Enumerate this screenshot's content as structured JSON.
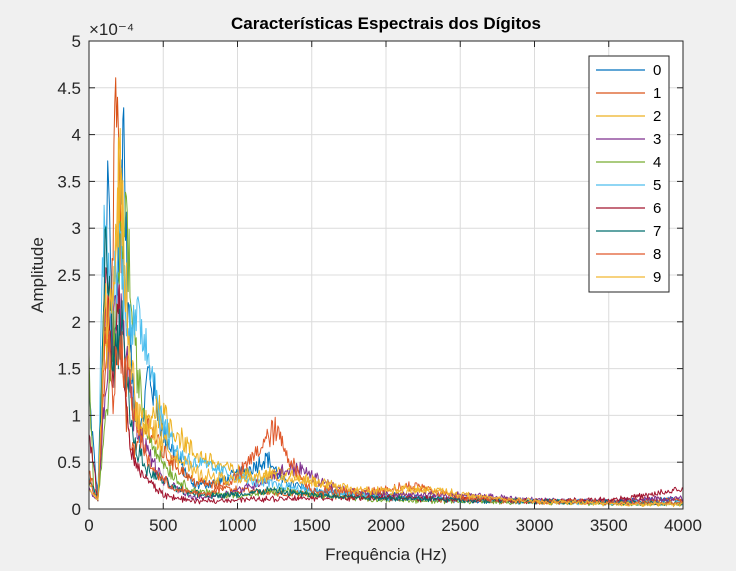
{
  "chart_data": {
    "type": "line",
    "title": "Características Espectrais dos Dígitos",
    "xlabel": "Frequência (Hz)",
    "ylabel": "Amplitude",
    "y_exponent_label": "×10⁻⁴",
    "xlim": [
      0,
      4000
    ],
    "ylim": [
      0,
      5
    ],
    "grid": true,
    "legend_position": "top-right",
    "x_ticks": [
      0,
      500,
      1000,
      1500,
      2000,
      2500,
      3000,
      3500,
      4000
    ],
    "x_tick_labels": [
      "0",
      "500",
      "1000",
      "1500",
      "2000",
      "2500",
      "3000",
      "3500",
      "4000"
    ],
    "y_ticks": [
      0,
      0.5,
      1,
      1.5,
      2,
      2.5,
      3,
      3.5,
      4,
      4.5,
      5
    ],
    "y_tick_labels": [
      "0",
      "0.5",
      "1",
      "1.5",
      "2",
      "2.5",
      "3",
      "3.5",
      "4",
      "4.5",
      "5"
    ],
    "series": [
      {
        "name": "0",
        "color": "#0072BD",
        "x": [
          0,
          60,
          130,
          160,
          200,
          230,
          260,
          300,
          350,
          400,
          500,
          700,
          900,
          1100,
          1200,
          1300,
          1500,
          1800,
          2000,
          2500,
          3000,
          3500,
          4000
        ],
        "y": [
          1.2,
          0.1,
          3.55,
          1.6,
          2.7,
          4.35,
          2.2,
          1.2,
          0.8,
          1.5,
          0.8,
          0.25,
          0.3,
          0.45,
          0.55,
          0.3,
          0.2,
          0.15,
          0.15,
          0.1,
          0.08,
          0.08,
          0.1
        ]
      },
      {
        "name": "1",
        "color": "#D95319",
        "x": [
          0,
          60,
          100,
          150,
          180,
          210,
          250,
          300,
          400,
          500,
          700,
          1000,
          1500,
          2000,
          2500,
          3000,
          3500,
          4000
        ],
        "y": [
          0.4,
          0.1,
          1.2,
          2.0,
          4.6,
          3.1,
          1.0,
          0.6,
          0.9,
          0.6,
          0.3,
          0.2,
          0.15,
          0.12,
          0.1,
          0.08,
          0.08,
          0.1
        ]
      },
      {
        "name": "2",
        "color": "#EDB120",
        "x": [
          0,
          60,
          100,
          150,
          200,
          240,
          280,
          350,
          450,
          550,
          700,
          900,
          1100,
          1300,
          1500,
          1700,
          2000,
          2300,
          2600,
          3000,
          3500,
          4000
        ],
        "y": [
          0.3,
          0.1,
          2.0,
          1.5,
          3.5,
          2.6,
          1.2,
          0.8,
          1.1,
          0.9,
          0.6,
          0.45,
          0.35,
          0.4,
          0.3,
          0.2,
          0.15,
          0.2,
          0.12,
          0.08,
          0.06,
          0.05
        ]
      },
      {
        "name": "3",
        "color": "#7E2F8E",
        "x": [
          0,
          60,
          120,
          180,
          240,
          300,
          400,
          500,
          700,
          900,
          1100,
          1300,
          1400,
          1500,
          1700,
          2000,
          2500,
          3000,
          3500,
          4000
        ],
        "y": [
          0.2,
          0.1,
          1.5,
          2.2,
          1.8,
          1.0,
          0.6,
          0.3,
          0.12,
          0.15,
          0.25,
          0.4,
          0.45,
          0.35,
          0.2,
          0.15,
          0.15,
          0.1,
          0.08,
          0.12
        ]
      },
      {
        "name": "4",
        "color": "#77AC30",
        "x": [
          0,
          30,
          60,
          120,
          180,
          240,
          270,
          300,
          350,
          400,
          500,
          600,
          700,
          900,
          1100,
          1300,
          1500,
          2000,
          2500,
          3000,
          3500,
          4000
        ],
        "y": [
          1.6,
          0.2,
          0.1,
          1.0,
          2.0,
          3.3,
          2.6,
          1.8,
          1.2,
          0.8,
          0.5,
          0.3,
          0.2,
          0.15,
          0.15,
          0.2,
          0.15,
          0.1,
          0.08,
          0.07,
          0.06,
          0.06
        ]
      },
      {
        "name": "5",
        "color": "#4DBEEE",
        "x": [
          0,
          60,
          100,
          150,
          200,
          250,
          300,
          350,
          400,
          450,
          500,
          600,
          700,
          900,
          1100,
          1300,
          1500,
          1800,
          2000,
          2500,
          3000,
          3500,
          4000
        ],
        "y": [
          0.3,
          0.1,
          3.2,
          2.0,
          2.9,
          2.2,
          1.9,
          2.0,
          1.7,
          1.3,
          0.9,
          0.6,
          0.5,
          0.4,
          0.3,
          0.25,
          0.2,
          0.15,
          0.12,
          0.1,
          0.08,
          0.07,
          0.06
        ]
      },
      {
        "name": "6",
        "color": "#A2142F",
        "x": [
          0,
          60,
          120,
          160,
          200,
          250,
          300,
          400,
          500,
          700,
          1000,
          1500,
          2000,
          2500,
          3000,
          3500,
          3800,
          4000
        ],
        "y": [
          0.8,
          0.1,
          2.5,
          1.5,
          2.2,
          1.0,
          0.5,
          0.3,
          0.15,
          0.08,
          0.1,
          0.12,
          0.12,
          0.1,
          0.08,
          0.1,
          0.15,
          0.22
        ]
      },
      {
        "name": "7",
        "color": "#006D6D",
        "x": [
          0,
          60,
          110,
          170,
          220,
          300,
          400,
          600,
          800,
          1000,
          1200,
          1500,
          2000,
          2500,
          3000,
          3500,
          4000
        ],
        "y": [
          0.3,
          0.1,
          2.8,
          1.5,
          2.0,
          0.7,
          0.4,
          0.2,
          0.15,
          0.15,
          0.2,
          0.15,
          0.12,
          0.1,
          0.08,
          0.07,
          0.06
        ]
      },
      {
        "name": "8",
        "color": "#E0582B",
        "x": [
          0,
          60,
          120,
          160,
          200,
          260,
          320,
          400,
          500,
          600,
          800,
          1000,
          1100,
          1200,
          1250,
          1300,
          1400,
          1500,
          1800,
          2200,
          2500,
          3000,
          3500,
          4000
        ],
        "y": [
          0.3,
          0.1,
          2.1,
          1.2,
          1.8,
          1.4,
          0.9,
          0.5,
          0.3,
          0.2,
          0.15,
          0.35,
          0.55,
          0.75,
          0.85,
          0.7,
          0.4,
          0.2,
          0.18,
          0.25,
          0.12,
          0.08,
          0.07,
          0.06
        ]
      },
      {
        "name": "9",
        "color": "#F2B630",
        "x": [
          0,
          60,
          110,
          160,
          210,
          260,
          320,
          400,
          500,
          600,
          700,
          800,
          1000,
          1200,
          1500,
          1800,
          2000,
          2200,
          2400,
          2700,
          3000,
          3500,
          4000
        ],
        "y": [
          0.2,
          0.1,
          2.2,
          2.0,
          3.6,
          2.1,
          1.0,
          0.9,
          0.7,
          0.55,
          0.4,
          0.35,
          0.3,
          0.35,
          0.3,
          0.2,
          0.2,
          0.22,
          0.18,
          0.12,
          0.08,
          0.06,
          0.05
        ]
      }
    ]
  }
}
